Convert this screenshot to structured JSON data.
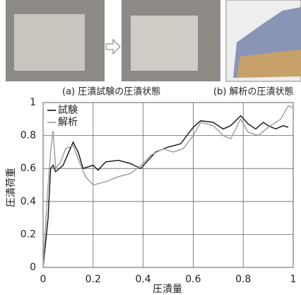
{
  "figure": {
    "captions": [
      "(a) 圧潰試験の圧潰状態",
      "(b) 解析の圧潰状態"
    ]
  },
  "chart_data": {
    "type": "line",
    "xlabel": "圧潰量",
    "ylabel": "圧潰荷重",
    "xlim": [
      0,
      1
    ],
    "ylim": [
      0,
      1
    ],
    "xticks": [
      0,
      0.2,
      0.4,
      0.6,
      0.8,
      1
    ],
    "yticks": [
      0,
      0.2,
      0.4,
      0.6,
      0.8,
      1
    ],
    "grid": true,
    "legend": "upper left",
    "series": [
      {
        "name": "試験",
        "color": "#111111",
        "x": [
          0,
          0.02,
          0.03,
          0.04,
          0.05,
          0.08,
          0.12,
          0.14,
          0.16,
          0.2,
          0.22,
          0.25,
          0.3,
          0.35,
          0.39,
          0.42,
          0.45,
          0.5,
          0.55,
          0.6,
          0.63,
          0.68,
          0.72,
          0.75,
          0.79,
          0.82,
          0.85,
          0.88,
          0.9,
          0.93,
          0.96,
          0.98
        ],
        "values": [
          0,
          0.3,
          0.6,
          0.62,
          0.58,
          0.62,
          0.76,
          0.7,
          0.6,
          0.62,
          0.59,
          0.64,
          0.65,
          0.63,
          0.6,
          0.65,
          0.7,
          0.73,
          0.75,
          0.85,
          0.89,
          0.88,
          0.84,
          0.86,
          0.92,
          0.87,
          0.84,
          0.88,
          0.86,
          0.84,
          0.86,
          0.85
        ]
      },
      {
        "name": "解析",
        "color": "#9a9a9a",
        "x": [
          0,
          0.01,
          0.02,
          0.03,
          0.04,
          0.05,
          0.07,
          0.09,
          0.12,
          0.15,
          0.17,
          0.2,
          0.25,
          0.3,
          0.35,
          0.4,
          0.43,
          0.48,
          0.52,
          0.56,
          0.6,
          0.63,
          0.68,
          0.72,
          0.75,
          0.79,
          0.82,
          0.86,
          0.9,
          0.95,
          0.98,
          1
        ],
        "values": [
          0,
          0.25,
          0.5,
          0.7,
          0.83,
          0.6,
          0.64,
          0.72,
          0.74,
          0.62,
          0.55,
          0.5,
          0.52,
          0.55,
          0.57,
          0.63,
          0.68,
          0.72,
          0.7,
          0.72,
          0.8,
          0.88,
          0.86,
          0.8,
          0.78,
          0.9,
          0.82,
          0.8,
          0.85,
          0.9,
          0.98,
          0.97
        ]
      }
    ]
  }
}
